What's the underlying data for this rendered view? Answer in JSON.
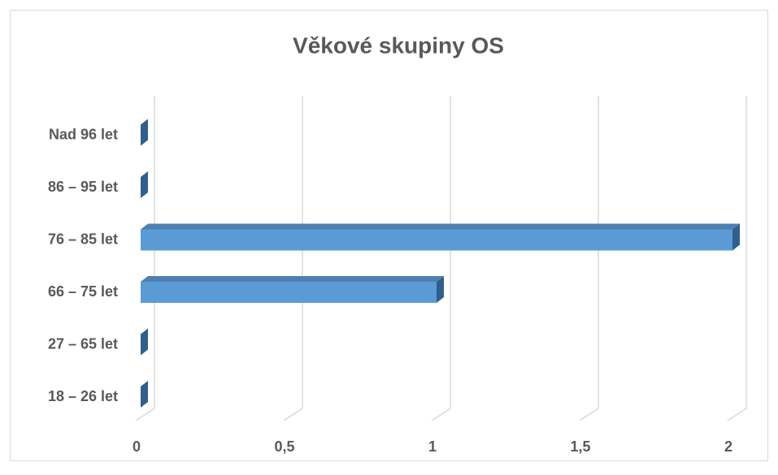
{
  "chart_data": {
    "type": "bar3d",
    "orientation": "horizontal",
    "title": "Věkové skupiny OS",
    "categories": [
      "18 – 26 let",
      "27 – 65 let",
      "66 – 75 let",
      "76 – 85 let",
      "86 – 95 let",
      "Nad 96 let"
    ],
    "values": [
      0,
      0,
      1,
      2,
      0,
      0
    ],
    "color": "#5b9bd5",
    "xlim": [
      0,
      2
    ],
    "xticks": [
      0,
      {
        "value": 0.5,
        "label": "0,5"
      },
      1,
      {
        "value": 1.5,
        "label": "1,5"
      },
      2
    ],
    "grid": true
  }
}
